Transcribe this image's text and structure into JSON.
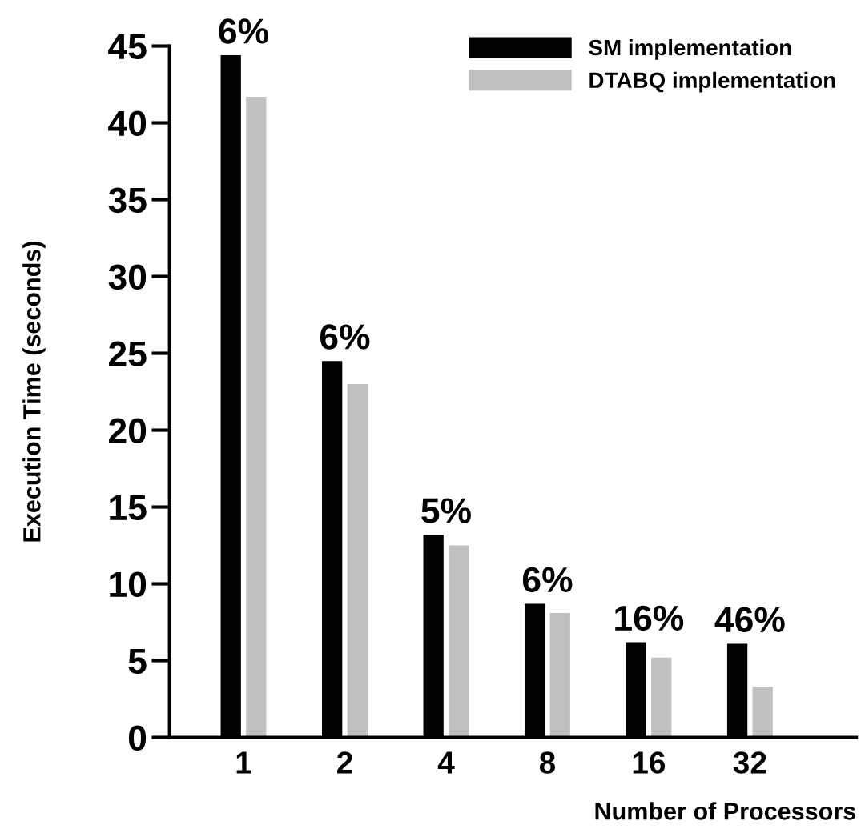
{
  "chart_data": {
    "type": "bar",
    "xlabel": "Number of Processors",
    "ylabel": "Execution Time (seconds)",
    "categories": [
      "1",
      "2",
      "4",
      "8",
      "16",
      "32"
    ],
    "series": [
      {
        "name": "SM implementation",
        "color": "#000000",
        "values": [
          44.4,
          24.5,
          13.2,
          8.7,
          6.2,
          6.1
        ]
      },
      {
        "name": "DTABQ implementation",
        "color": "#c0c0c0",
        "values": [
          41.7,
          23.0,
          12.5,
          8.1,
          5.2,
          3.3
        ]
      }
    ],
    "ylim": [
      0,
      45
    ],
    "yticks": [
      0,
      5,
      10,
      15,
      20,
      25,
      30,
      35,
      40,
      45
    ],
    "annotations": [
      {
        "text": "6%",
        "x": "1",
        "y": 44.4
      },
      {
        "text": "6%",
        "x": "2",
        "y": 24.5
      },
      {
        "text": "5%",
        "x": "4",
        "y": 13.2
      },
      {
        "text": "6%",
        "x": "8",
        "y": 8.7
      },
      {
        "text": "16%",
        "x": "16",
        "y": 6.2
      },
      {
        "text": "46%",
        "x": "32",
        "y": 6.1
      }
    ],
    "legend": "top right",
    "grid": false
  }
}
